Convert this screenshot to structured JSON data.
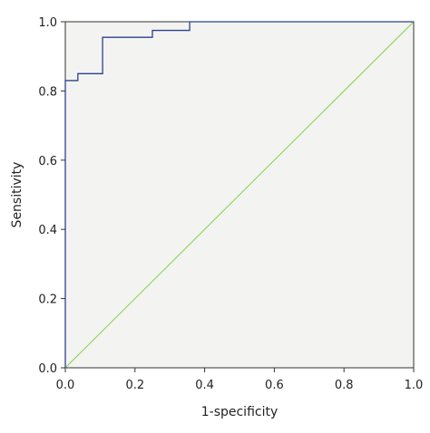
{
  "chart_data": {
    "type": "line",
    "title": "",
    "xlabel": "1-specificity",
    "ylabel": "Sensitivity",
    "xlim": [
      0,
      1
    ],
    "ylim": [
      0,
      1
    ],
    "x_ticks": [
      "0.0",
      "0.2",
      "0.4",
      "0.6",
      "0.8",
      "1.0"
    ],
    "y_ticks": [
      "0.0",
      "0.2",
      "0.4",
      "0.6",
      "0.8",
      "1.0"
    ],
    "grid": false,
    "legend": "none",
    "plot_background": "#f3f3f1",
    "series": [
      {
        "color": "#2f3f8f",
        "x": [
          0.0,
          0.0,
          0.036,
          0.036,
          0.107,
          0.107,
          0.25,
          0.25,
          0.357,
          0.357,
          1.0
        ],
        "y": [
          0.0,
          0.83,
          0.83,
          0.85,
          0.85,
          0.955,
          0.955,
          0.975,
          0.975,
          1.0,
          1.0
        ]
      },
      {
        "color": "#7dd44a",
        "x": [
          0,
          1
        ],
        "y": [
          0,
          1
        ]
      }
    ]
  }
}
